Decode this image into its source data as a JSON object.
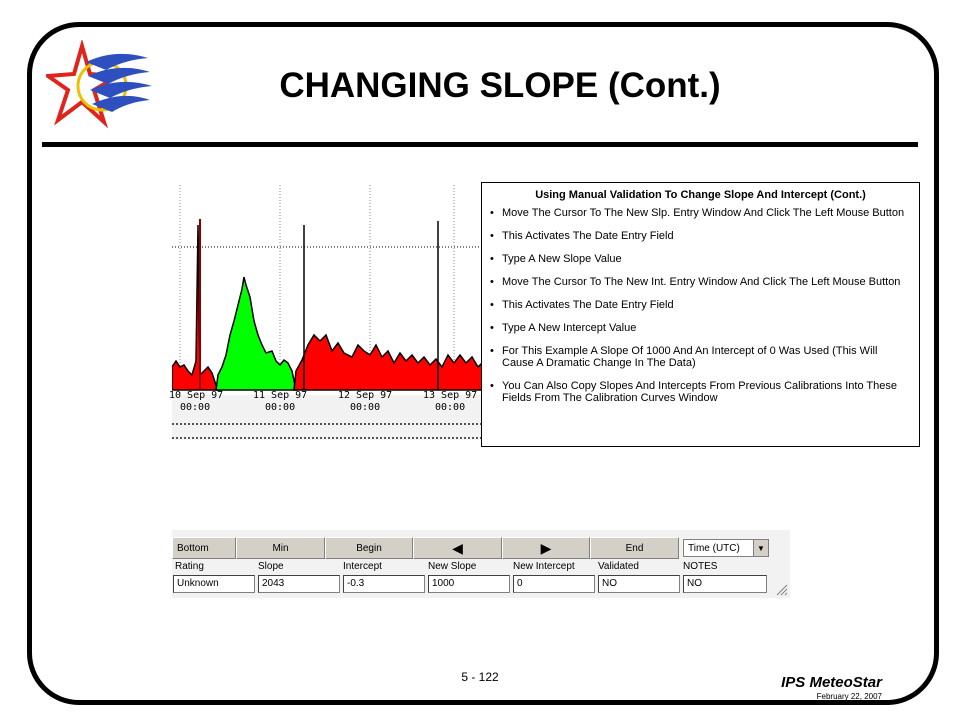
{
  "slide": {
    "title": "CHANGING SLOPE (Cont.)",
    "page_number": "5 - 122",
    "brand": "IPS MeteoStar",
    "date": "February 22, 2007"
  },
  "chart": {
    "x_ticks": [
      {
        "line1": "10 Sep 97",
        "line2": "00:00"
      },
      {
        "line1": "11 Sep 97",
        "line2": "00:00"
      },
      {
        "line1": "12 Sep 97",
        "line2": "00:00"
      },
      {
        "line1": "13 Sep 97",
        "line2": "00:00"
      }
    ],
    "colors": {
      "red": "#ff0000",
      "green": "#00ff00",
      "outline": "#000000"
    }
  },
  "toolbar": {
    "bottom": "Bottom",
    "min": "Min",
    "begin": "Begin",
    "prev": "◀",
    "next": "▶",
    "end": "End",
    "time_select": "Time (UTC)"
  },
  "fields": {
    "labels": {
      "rating": "Rating",
      "slope": "Slope",
      "intercept": "Intercept",
      "new_slope": "New Slope",
      "new_intercept": "New Intercept",
      "validated": "Validated",
      "notes": "NOTES"
    },
    "values": {
      "rating": "Unknown",
      "slope": "2043",
      "intercept": "-0.3",
      "new_slope": "1000",
      "new_intercept": "0",
      "validated": "NO",
      "notes": "NO"
    }
  },
  "callout": {
    "heading": "Using Manual Validation To Change Slope And Intercept (Cont.)",
    "items": [
      "Move The Cursor To The New Slp. Entry Window And Click The Left Mouse Button",
      "This Activates The Date Entry Field",
      "Type A New Slope Value",
      "Move The Cursor To The New Int. Entry Window And Click The Left Mouse Button",
      "This Activates The Date Entry Field",
      "Type A New Intercept Value",
      "For This Example A Slope Of 1000 And An Intercept of 0 Was Used (This Will Cause A Dramatic Change In The Data)",
      "You Can Also Copy Slopes And Intercepts From Previous Calibrations Into These Fields From The Calibration Curves Window"
    ]
  }
}
